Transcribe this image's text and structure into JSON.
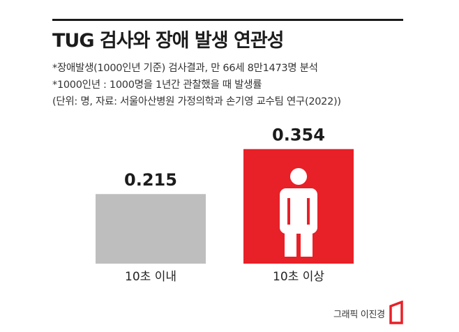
{
  "header": {
    "title": "TUG 검사와 장애 발생 연관성",
    "note1": "*장애발생(1000인년 기준) 검사결과, 만 66세 8만1473명 분석",
    "note2": "*1000인년 : 1000명을 1년간 관찰했을 때 발생률",
    "note3": "(단위: 명, 자료: 서울아산병원 가정의학과 손기영 교수팀 연구(2022))"
  },
  "chart_data": {
    "type": "bar",
    "categories": [
      "10초 이내",
      "10초 이상"
    ],
    "values": [
      0.215,
      0.354
    ],
    "value_labels": [
      "0.215",
      "0.354"
    ],
    "bar_colors": [
      "#bebebe",
      "#e82027"
    ],
    "highlight_icon": "person-icon",
    "ylim": [
      0,
      0.4
    ],
    "grid": false,
    "title": "",
    "xlabel": "",
    "ylabel": ""
  },
  "footer": {
    "credit": "그래픽 이진경",
    "logo_icon": "brand-logo-icon",
    "logo_color": "#e82027"
  }
}
